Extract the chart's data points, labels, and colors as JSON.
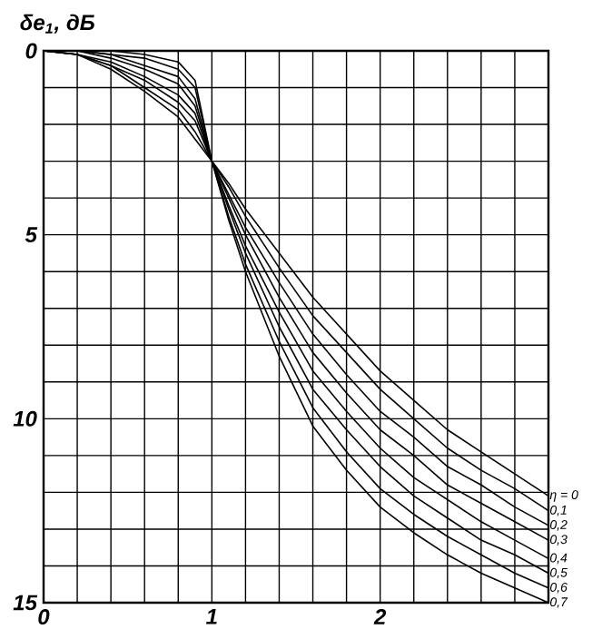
{
  "chart_data": {
    "type": "line",
    "ylabel": "δe$_{1}$, дБ",
    "x": [
      0,
      0.2,
      0.4,
      0.6,
      0.8,
      0.9,
      1.0,
      1.1,
      1.2,
      1.4,
      1.6,
      1.8,
      2.0,
      2.2,
      2.4,
      2.6,
      2.8,
      3.0
    ],
    "xlim": [
      0,
      3
    ],
    "ylim": [
      15,
      0
    ],
    "xticks": [
      0,
      {
        "value": 0.2,
        "label": null
      },
      {
        "value": 0.4,
        "label": null
      },
      {
        "value": 0.6,
        "label": null
      },
      {
        "value": 0.8,
        "label": null
      },
      1,
      {
        "value": 1.2,
        "label": null
      },
      {
        "value": 1.4,
        "label": null
      },
      {
        "value": 1.6,
        "label": null
      },
      {
        "value": 1.8,
        "label": null
      },
      2,
      {
        "value": 2.2,
        "label": null
      },
      {
        "value": 2.4,
        "label": null
      },
      {
        "value": 2.6,
        "label": null
      },
      {
        "value": 2.8,
        "label": null
      }
    ],
    "yticks": [
      0,
      {
        "value": 1,
        "label": null
      },
      {
        "value": 2,
        "label": null
      },
      {
        "value": 3,
        "label": null
      },
      {
        "value": 4,
        "label": null
      },
      5,
      {
        "value": 6,
        "label": null
      },
      {
        "value": 7,
        "label": null
      },
      {
        "value": 8,
        "label": null
      },
      {
        "value": 9,
        "label": null
      },
      10,
      {
        "value": 11,
        "label": null
      },
      {
        "value": 12,
        "label": null
      },
      {
        "value": 13,
        "label": null
      },
      {
        "value": 14,
        "label": null
      },
      15
    ],
    "grid": true,
    "marker": "none",
    "line_style": "solid",
    "series": [
      {
        "name": "η = 0",
        "color": "#000000",
        "values": [
          0,
          0.1,
          0.5,
          1.1,
          1.8,
          2.4,
          3.0,
          3.6,
          4.3,
          5.5,
          6.7,
          7.7,
          8.7,
          9.5,
          10.3,
          10.9,
          11.5,
          12.1
        ]
      },
      {
        "name": "0,1",
        "color": "#000000",
        "values": [
          0,
          0.1,
          0.4,
          1.0,
          1.6,
          2.2,
          3.0,
          3.7,
          4.5,
          5.9,
          7.2,
          8.2,
          9.2,
          10.0,
          10.8,
          11.4,
          11.9,
          12.5
        ]
      },
      {
        "name": "0,2",
        "color": "#000000",
        "values": [
          0,
          0.1,
          0.4,
          0.8,
          1.4,
          1.9,
          3.0,
          3.9,
          4.8,
          6.3,
          7.7,
          8.8,
          9.8,
          10.5,
          11.3,
          11.8,
          12.4,
          12.9
        ]
      },
      {
        "name": "0,3",
        "color": "#000000",
        "values": [
          0,
          0.1,
          0.3,
          0.7,
          1.2,
          1.7,
          3.0,
          4.0,
          5.0,
          6.7,
          8.2,
          9.3,
          10.3,
          11.0,
          11.8,
          12.3,
          12.8,
          13.3
        ]
      },
      {
        "name": "0,4",
        "color": "#000000",
        "values": [
          0,
          0,
          0.2,
          0.5,
          0.9,
          1.5,
          3.0,
          4.2,
          5.3,
          7.1,
          8.7,
          9.8,
          10.8,
          11.6,
          12.2,
          12.8,
          13.3,
          13.8
        ]
      },
      {
        "name": "0,5",
        "color": "#000000",
        "values": [
          0,
          0,
          0.1,
          0.4,
          0.7,
          1.3,
          3.0,
          4.3,
          5.5,
          7.5,
          9.2,
          10.3,
          11.3,
          12.1,
          12.7,
          13.3,
          13.7,
          14.2
        ]
      },
      {
        "name": "0,6",
        "color": "#000000",
        "values": [
          0,
          0,
          0.1,
          0.2,
          0.5,
          1.0,
          3.0,
          4.5,
          5.8,
          7.9,
          9.7,
          10.9,
          11.9,
          12.6,
          13.2,
          13.7,
          14.2,
          14.6
        ]
      },
      {
        "name": "0,7",
        "color": "#000000",
        "values": [
          0,
          0,
          0,
          0.1,
          0.3,
          0.8,
          3.0,
          4.6,
          6.0,
          8.3,
          10.2,
          11.4,
          12.4,
          13.1,
          13.7,
          14.2,
          14.6,
          15.0
        ]
      }
    ]
  }
}
